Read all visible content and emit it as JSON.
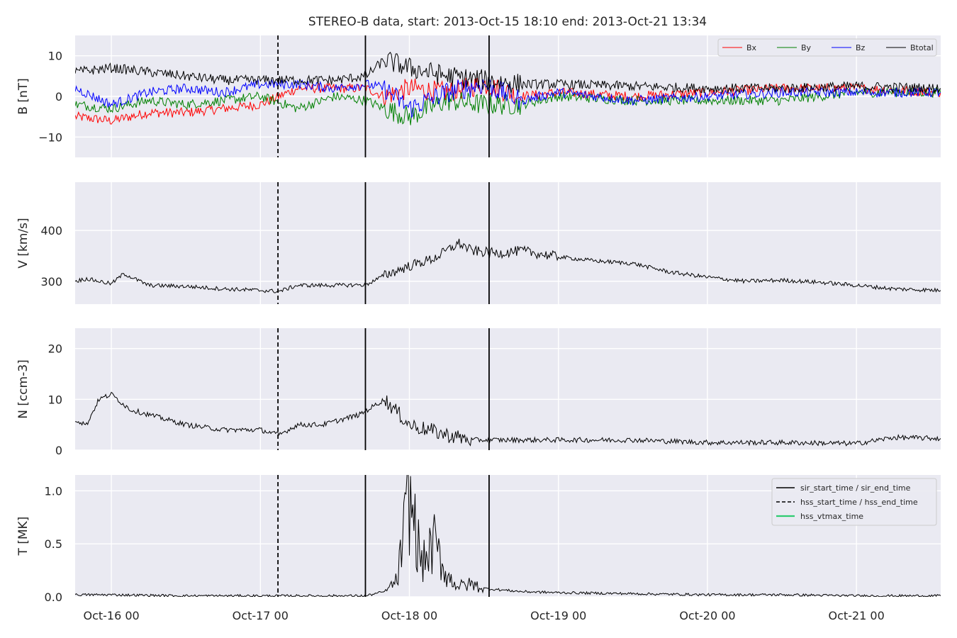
{
  "chart_data": {
    "type": "line",
    "title": "STEREO-B data, start: 2013-Oct-15 18:10  end: 2013-Oct-21 13:34",
    "time_range": [
      "2013-10-15T18:10",
      "2013-10-21T13:34"
    ],
    "x_tick_labels": [
      "Oct-16 00",
      "Oct-17 00",
      "Oct-18 00",
      "Oct-19 00",
      "Oct-20 00",
      "Oct-21 00"
    ],
    "x_ticks": [
      "2013-10-16T00:00",
      "2013-10-17T00:00",
      "2013-10-18T00:00",
      "2013-10-19T00:00",
      "2013-10-20T00:00",
      "2013-10-21T00:00"
    ],
    "grid": true,
    "event_lines": [
      {
        "time": "2013-10-17T02:50",
        "style": "dashed",
        "color": "#000000"
      },
      {
        "time": "2013-10-17T16:55",
        "style": "solid",
        "color": "#000000"
      },
      {
        "time": "2013-10-18T12:50",
        "style": "solid",
        "color": "#000000"
      }
    ],
    "panels": [
      {
        "id": "B",
        "ylabel": "B [nT]",
        "ylim": [
          -15,
          15
        ],
        "yticks": [
          -10,
          0,
          10
        ],
        "ytick_labels": [
          "−10",
          "0",
          "10"
        ],
        "legend": {
          "placement": "top-right",
          "orientation": "horizontal"
        },
        "series": [
          {
            "name": "Bx",
            "color": "#ff0000",
            "t": [
              "2013-10-15T18:10",
              "2013-10-16T00:00",
              "2013-10-16T06:00",
              "2013-10-16T12:00",
              "2013-10-16T18:00",
              "2013-10-17T00:00",
              "2013-10-17T06:00",
              "2013-10-17T12:00",
              "2013-10-17T17:00",
              "2013-10-17T20:00",
              "2013-10-18T00:00",
              "2013-10-18T06:00",
              "2013-10-18T12:00",
              "2013-10-18T18:00",
              "2013-10-19T00:00",
              "2013-10-19T12:00",
              "2013-10-20T00:00",
              "2013-10-20T12:00",
              "2013-10-21T00:00",
              "2013-10-21T13:34"
            ],
            "values": [
              -5,
              -6,
              -4,
              -4,
              -3,
              -2,
              2,
              2,
              2,
              0,
              2,
              1,
              3,
              0,
              1,
              0,
              1,
              2,
              2,
              1
            ]
          },
          {
            "name": "By",
            "color": "#008000",
            "t": [
              "2013-10-15T18:10",
              "2013-10-16T00:00",
              "2013-10-16T06:00",
              "2013-10-16T12:00",
              "2013-10-16T18:00",
              "2013-10-17T00:00",
              "2013-10-17T06:00",
              "2013-10-17T12:00",
              "2013-10-17T17:00",
              "2013-10-17T20:00",
              "2013-10-18T00:00",
              "2013-10-18T06:00",
              "2013-10-18T12:00",
              "2013-10-18T18:00",
              "2013-10-19T00:00",
              "2013-10-19T12:00",
              "2013-10-20T00:00",
              "2013-10-20T12:00",
              "2013-10-21T00:00",
              "2013-10-21T13:34"
            ],
            "values": [
              -2,
              -3,
              -1,
              -2,
              -1,
              0,
              -3,
              0,
              -1,
              -3,
              -5,
              -1,
              -2,
              -2,
              0,
              -1,
              -1,
              -1,
              1,
              1
            ]
          },
          {
            "name": "Bz",
            "color": "#0000ff",
            "t": [
              "2013-10-15T18:10",
              "2013-10-16T00:00",
              "2013-10-16T06:00",
              "2013-10-16T12:00",
              "2013-10-16T18:00",
              "2013-10-17T00:00",
              "2013-10-17T06:00",
              "2013-10-17T12:00",
              "2013-10-17T17:00",
              "2013-10-17T20:00",
              "2013-10-18T00:00",
              "2013-10-18T06:00",
              "2013-10-18T12:00",
              "2013-10-18T18:00",
              "2013-10-19T00:00",
              "2013-10-19T12:00",
              "2013-10-20T00:00",
              "2013-10-20T12:00",
              "2013-10-21T00:00",
              "2013-10-21T13:34"
            ],
            "values": [
              2,
              -2,
              1,
              2,
              1,
              3,
              3,
              2,
              3,
              2,
              -3,
              1,
              3,
              -1,
              1,
              -1,
              0,
              1,
              1,
              1
            ]
          },
          {
            "name": "Btotal",
            "color": "#000000",
            "t": [
              "2013-10-15T18:10",
              "2013-10-16T00:00",
              "2013-10-16T06:00",
              "2013-10-16T12:00",
              "2013-10-16T18:00",
              "2013-10-17T00:00",
              "2013-10-17T06:00",
              "2013-10-17T12:00",
              "2013-10-17T17:00",
              "2013-10-17T20:00",
              "2013-10-18T00:00",
              "2013-10-18T06:00",
              "2013-10-18T12:00",
              "2013-10-18T18:00",
              "2013-10-19T00:00",
              "2013-10-19T12:00",
              "2013-10-20T00:00",
              "2013-10-20T12:00",
              "2013-10-21T00:00",
              "2013-10-21T13:34"
            ],
            "values": [
              6,
              7,
              6,
              5,
              4,
              4,
              4,
              4,
              5,
              9,
              7,
              5,
              4,
              3,
              3,
              2.5,
              2,
              2,
              2.5,
              2
            ]
          }
        ]
      },
      {
        "id": "V",
        "ylabel": "V [km/s]",
        "ylim": [
          255,
          495
        ],
        "yticks": [
          300,
          400
        ],
        "ytick_labels": [
          "300",
          "400"
        ],
        "series": [
          {
            "name": "",
            "color": "#000000",
            "t": [
              "2013-10-15T18:10",
              "2013-10-15T20:00",
              "2013-10-16T00:00",
              "2013-10-16T02:00",
              "2013-10-16T06:00",
              "2013-10-16T12:00",
              "2013-10-16T18:00",
              "2013-10-17T00:00",
              "2013-10-17T03:00",
              "2013-10-17T06:00",
              "2013-10-17T12:00",
              "2013-10-17T17:00",
              "2013-10-17T20:00",
              "2013-10-18T00:00",
              "2013-10-18T04:00",
              "2013-10-18T08:00",
              "2013-10-18T10:00",
              "2013-10-18T14:00",
              "2013-10-18T18:00",
              "2013-10-19T00:00",
              "2013-10-19T06:00",
              "2013-10-19T12:00",
              "2013-10-19T18:00",
              "2013-10-20T00:00",
              "2013-10-20T06:00",
              "2013-10-20T12:00",
              "2013-10-20T18:00",
              "2013-10-21T00:00",
              "2013-10-21T06:00",
              "2013-10-21T13:34"
            ],
            "values": [
              300,
              305,
              295,
              315,
              292,
              290,
              285,
              282,
              280,
              292,
              292,
              293,
              312,
              330,
              345,
              375,
              360,
              355,
              360,
              348,
              340,
              335,
              318,
              308,
              300,
              302,
              298,
              292,
              285,
              282
            ]
          }
        ]
      },
      {
        "id": "N",
        "ylabel": "N [ccm-3]",
        "ylim": [
          0,
          24
        ],
        "yticks": [
          0,
          10,
          20
        ],
        "ytick_labels": [
          "0",
          "10",
          "20"
        ],
        "series": [
          {
            "name": "",
            "color": "#000000",
            "t": [
              "2013-10-15T18:10",
              "2013-10-15T20:00",
              "2013-10-15T22:00",
              "2013-10-16T00:00",
              "2013-10-16T03:00",
              "2013-10-16T06:00",
              "2013-10-16T12:00",
              "2013-10-16T18:00",
              "2013-10-17T00:00",
              "2013-10-17T03:00",
              "2013-10-17T06:00",
              "2013-10-17T10:00",
              "2013-10-17T16:00",
              "2013-10-17T20:00",
              "2013-10-18T00:00",
              "2013-10-18T03:00",
              "2013-10-18T06:00",
              "2013-10-18T10:00",
              "2013-10-18T14:00",
              "2013-10-19T00:00",
              "2013-10-19T12:00",
              "2013-10-20T00:00",
              "2013-10-20T12:00",
              "2013-10-21T00:00",
              "2013-10-21T06:00",
              "2013-10-21T13:34"
            ],
            "values": [
              6,
              5,
              10,
              11,
              8,
              7,
              5,
              4,
              4,
              3,
              5,
              5,
              7,
              10,
              5,
              4,
              3,
              2,
              2,
              2,
              2,
              1.5,
              1.5,
              1.3,
              2.5,
              2.3
            ]
          }
        ]
      },
      {
        "id": "T",
        "ylabel": "T [MK]",
        "ylim": [
          0,
          1.15
        ],
        "yticks": [
          0.0,
          0.5,
          1.0
        ],
        "ytick_labels": [
          "0.0",
          "0.5",
          "1.0"
        ],
        "legend": {
          "placement": "top-right",
          "orientation": "vertical"
        },
        "series": [
          {
            "name": "",
            "color": "#000000",
            "t": [
              "2013-10-15T18:10",
              "2013-10-16T00:00",
              "2013-10-16T12:00",
              "2013-10-17T00:00",
              "2013-10-17T12:00",
              "2013-10-17T17:00",
              "2013-10-17T20:00",
              "2013-10-17T22:00",
              "2013-10-18T00:00",
              "2013-10-18T02:00",
              "2013-10-18T04:00",
              "2013-10-18T06:00",
              "2013-10-18T08:00",
              "2013-10-18T10:00",
              "2013-10-18T12:00",
              "2013-10-18T18:00",
              "2013-10-19T00:00",
              "2013-10-19T12:00",
              "2013-10-20T00:00",
              "2013-10-20T12:00",
              "2013-10-21T00:00",
              "2013-10-21T13:34"
            ],
            "values": [
              0.02,
              0.02,
              0.01,
              0.01,
              0.01,
              0.01,
              0.05,
              0.15,
              0.95,
              0.3,
              0.5,
              0.2,
              0.1,
              0.12,
              0.08,
              0.05,
              0.04,
              0.03,
              0.02,
              0.02,
              0.01,
              0.01
            ]
          },
          {
            "name": "sir_start_time / sir_end_time",
            "color": "#000000",
            "dash": "solid",
            "values": []
          },
          {
            "name": "hss_start_time / hss_end_time",
            "color": "#000000",
            "dash": "dashed",
            "values": []
          },
          {
            "name": "hss_vtmax_time",
            "color": "#2ecc71",
            "dash": "solid",
            "values": []
          }
        ]
      }
    ]
  }
}
